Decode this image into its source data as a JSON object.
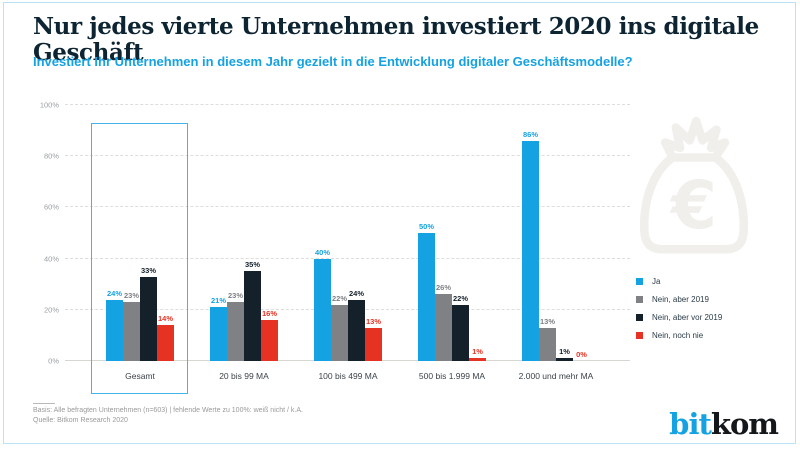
{
  "header": {
    "title": "Nur jedes vierte Unternehmen investiert 2020 ins digitale Geschäft",
    "subtitle": "Investiert Ihr Unternehmen in diesem Jahr gezielt in die Entwicklung digitaler Geschäftsmodelle?"
  },
  "chart_data": {
    "type": "bar",
    "categories": [
      "Gesamt",
      "20 bis 99 MA",
      "100 bis 499 MA",
      "500 bis 1.999 MA",
      "2.000 und mehr MA"
    ],
    "series": [
      {
        "name": "Ja",
        "color": "#14a2e2",
        "values": [
          24,
          21,
          40,
          50,
          86
        ]
      },
      {
        "name": "Nein, aber 2019",
        "color": "#7f8184",
        "values": [
          23,
          23,
          22,
          26,
          13
        ]
      },
      {
        "name": "Nein, aber vor 2019",
        "color": "#14212b",
        "values": [
          33,
          35,
          24,
          22,
          1
        ]
      },
      {
        "name": "Nein, noch nie",
        "color": "#e63222",
        "values": [
          14,
          16,
          13,
          1,
          0
        ]
      }
    ],
    "value_suffix": "%",
    "ylim": [
      0,
      100
    ],
    "yticks": [
      "0%",
      "20%",
      "40%",
      "60%",
      "80%",
      "100%"
    ],
    "grid": true,
    "legend_position": "right",
    "highlighted_category": "Gesamt"
  },
  "footer": {
    "basis": "Basis: Alle befragten Unternehmen (n=603) | fehlende Werte zu 100%: weiß nicht / k.A.",
    "quelle": "Quelle: Bitkom Research 2020"
  },
  "logo": {
    "part1": "bit",
    "part2": "kom"
  },
  "icons": {
    "decoration": "money-bag-euro-icon"
  },
  "colors": {
    "accent_blue": "#14a2e2",
    "dark_navy": "#0d2433",
    "red": "#e63222",
    "gray": "#7f8184",
    "frame_blue": "#b9e4f6",
    "icon_gray": "#f1efec"
  }
}
